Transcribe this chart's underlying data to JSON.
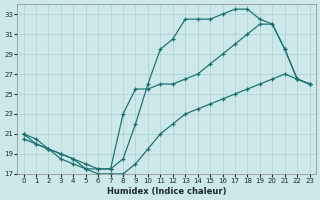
{
  "xlabel": "Humidex (Indice chaleur)",
  "background_color": "#cce8e8",
  "grid_color": "#aad0d0",
  "line_color": "#1a6e6e",
  "marker": "+",
  "xlim": [
    -0.5,
    23.5
  ],
  "ylim": [
    17,
    34
  ],
  "yticks": [
    17,
    19,
    21,
    23,
    25,
    27,
    29,
    31,
    33
  ],
  "xticks": [
    0,
    1,
    2,
    3,
    4,
    5,
    6,
    7,
    8,
    9,
    10,
    11,
    12,
    13,
    14,
    15,
    16,
    17,
    18,
    19,
    20,
    21,
    22,
    23
  ],
  "series": [
    {
      "x": [
        0,
        1,
        2,
        3,
        4,
        5,
        6,
        7,
        8,
        9,
        10,
        11,
        12,
        13,
        14,
        15,
        16,
        17,
        18,
        19,
        20,
        21,
        22,
        23
      ],
      "y": [
        21.0,
        20.5,
        19.5,
        19.0,
        18.5,
        17.5,
        17.5,
        17.5,
        18.5,
        22.0,
        26.0,
        29.5,
        30.5,
        32.5,
        32.5,
        32.5,
        33.0,
        33.5,
        33.5,
        32.5,
        32.0,
        29.5,
        26.5,
        26.0
      ]
    },
    {
      "x": [
        0,
        1,
        2,
        3,
        4,
        5,
        6,
        7,
        8,
        9,
        10,
        11,
        12,
        13,
        14,
        15,
        16,
        17,
        18,
        19,
        20,
        21,
        22,
        23
      ],
      "y": [
        20.5,
        20.0,
        19.5,
        19.0,
        18.5,
        18.0,
        17.5,
        17.5,
        23.0,
        25.5,
        25.5,
        26.0,
        26.0,
        26.5,
        27.0,
        28.0,
        29.0,
        30.0,
        31.0,
        32.0,
        32.0,
        29.5,
        26.5,
        26.0
      ]
    },
    {
      "x": [
        0,
        1,
        2,
        3,
        4,
        5,
        6,
        7,
        8,
        9,
        10,
        11,
        12,
        13,
        14,
        15,
        16,
        17,
        18,
        19,
        20,
        21,
        22,
        23
      ],
      "y": [
        21.0,
        20.0,
        19.5,
        18.5,
        18.0,
        17.5,
        17.0,
        17.0,
        17.0,
        18.0,
        19.5,
        21.0,
        22.0,
        23.0,
        23.5,
        24.0,
        24.5,
        25.0,
        25.5,
        26.0,
        26.5,
        27.0,
        26.5,
        26.0
      ]
    }
  ]
}
